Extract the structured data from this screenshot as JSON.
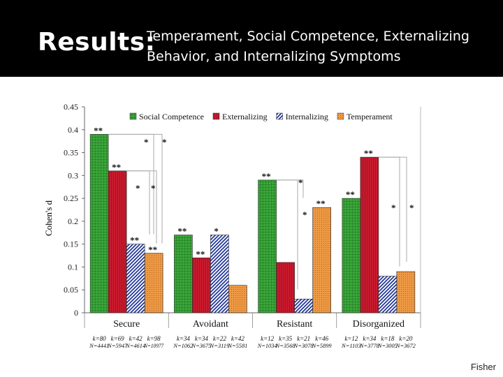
{
  "slide": {
    "results_label": "Results:",
    "title_lines": [
      "Temperament, Social Competence, Externalizing",
      "Behavior, and Internalizing Symptoms"
    ],
    "credit": "Fisher"
  },
  "chart_data": {
    "type": "bar",
    "title": "",
    "xlabel": "",
    "ylabel": "Cohen's d",
    "ylim": [
      0,
      0.45
    ],
    "yticks": [
      "0",
      "0.05",
      "0.1",
      "0.15",
      "0.2",
      "0.25",
      "0.3",
      "0.35",
      "0.4",
      "0.45"
    ],
    "categories": [
      "Secure",
      "Avoidant",
      "Resistant",
      "Disorganized"
    ],
    "series": [
      {
        "name": "Social Competence",
        "color": "#2e9a2e",
        "pattern": "green-grid",
        "values": [
          0.39,
          0.17,
          0.29,
          0.25
        ],
        "k": [
          "k=80",
          "k=34",
          "k=12",
          "k=12"
        ],
        "n": [
          "N=4441",
          "N=1062",
          "N=1034",
          "N=1103"
        ],
        "sig": [
          "**",
          "**",
          "**",
          "**"
        ]
      },
      {
        "name": "Externalizing",
        "color": "#c0152a",
        "pattern": "red-lines",
        "values": [
          0.31,
          0.12,
          0.11,
          0.34
        ],
        "k": [
          "k=69",
          "k=34",
          "k=35",
          "k=34"
        ],
        "n": [
          "N=5947",
          "N=3675",
          "N=3568",
          "N=3778"
        ],
        "sig": [
          "**",
          "**",
          "",
          "**"
        ]
      },
      {
        "name": "Internalizing",
        "color": "#2a3fa0",
        "pattern": "blue-diag",
        "values": [
          0.15,
          0.17,
          0.03,
          0.08
        ],
        "k": [
          "k=42",
          "k=22",
          "k=21",
          "k=18"
        ],
        "n": [
          "N=4614",
          "N=3119",
          "N=3078",
          "N=3005"
        ],
        "sig": [
          "**",
          "*",
          "",
          ""
        ]
      },
      {
        "name": "Temperament",
        "color": "#e8913a",
        "pattern": "orange-dots",
        "values": [
          0.13,
          0.06,
          0.23,
          0.09
        ],
        "k": [
          "k=98",
          "k=42",
          "k=46",
          "k=20"
        ],
        "n": [
          "N=10977",
          "N=5581",
          "N=5899",
          "N=3672"
        ],
        "sig": [
          "**",
          "",
          "**",
          ""
        ]
      }
    ],
    "bracket_stars": [
      [
        "*",
        "*",
        "*",
        "*"
      ],
      [],
      [
        "*",
        "*"
      ],
      [
        "*",
        "*"
      ]
    ],
    "legend_position": "top"
  }
}
